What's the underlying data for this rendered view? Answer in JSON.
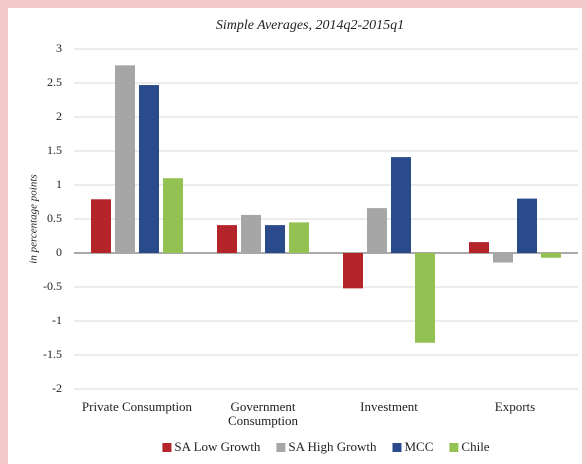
{
  "chart_data": {
    "type": "bar",
    "title": "Simple Averages, 2014q2-2015q1",
    "y_label": "in percentage points",
    "categories": [
      "Private Consumption",
      "Government Consumption",
      "Investment",
      "Exports"
    ],
    "series": [
      {
        "name": "SA Low Growth",
        "color": "#b3252b",
        "values": [
          0.79,
          0.41,
          -0.52,
          0.16
        ]
      },
      {
        "name": "SA High Growth",
        "color": "#a6a6a6",
        "values": [
          2.76,
          0.56,
          0.66,
          -0.14
        ]
      },
      {
        "name": "MCC",
        "color": "#2b4a8b",
        "values": [
          2.47,
          0.41,
          1.41,
          0.8
        ]
      },
      {
        "name": "Chile",
        "color": "#93c152",
        "values": [
          1.1,
          0.45,
          -1.32,
          -0.07
        ]
      }
    ],
    "ylim": [
      -2,
      3
    ],
    "yticks": [
      3,
      2.5,
      2,
      1.5,
      1,
      0.5,
      0,
      -0.5,
      -1,
      -1.5,
      -2
    ],
    "grid": true
  }
}
